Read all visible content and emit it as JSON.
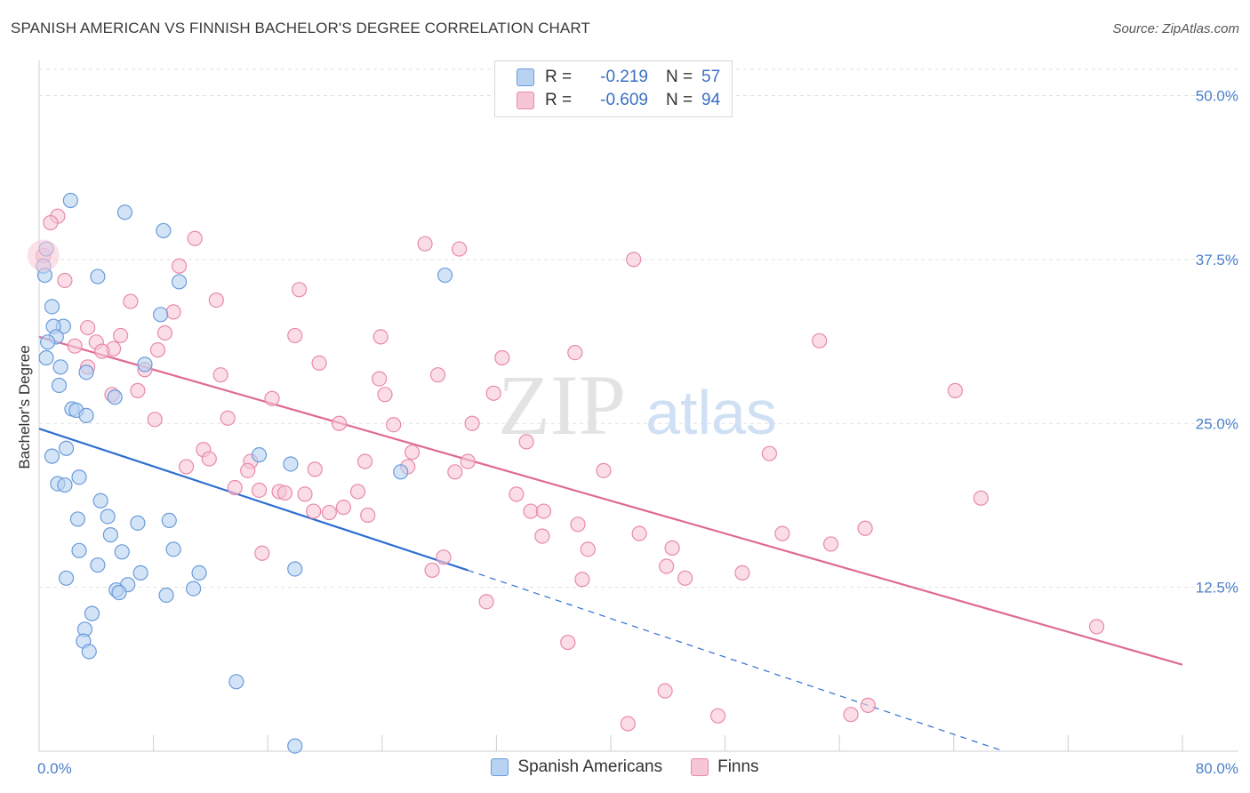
{
  "header": {
    "title": "SPANISH AMERICAN VS FINNISH BACHELOR'S DEGREE CORRELATION CHART",
    "source": "Source: ZipAtlas.com"
  },
  "watermark": {
    "zip": "ZIP",
    "atlas": "atlas"
  },
  "legend": {
    "rows": [
      {
        "r_label": "R =",
        "r_value": "-0.219",
        "n_label": "N =",
        "n_value": "57"
      },
      {
        "r_label": "R =",
        "r_value": "-0.609",
        "n_label": "N =",
        "n_value": "94"
      }
    ],
    "series": [
      "Spanish Americans",
      "Finns"
    ]
  },
  "colors": {
    "blue_fill": "#b8d2f2",
    "blue_stroke": "#6a9bdb",
    "blue_line": "#2f6fd1",
    "pink_fill": "#f7c6d6",
    "pink_stroke": "#e98aa8",
    "pink_line": "#e06a94",
    "tick_label": "#4a7fc9"
  },
  "chart_data": {
    "type": "scatter",
    "title": "SPANISH AMERICAN VS FINNISH BACHELOR'S DEGREE CORRELATION CHART",
    "xlabel": "",
    "ylabel": "Bachelor's Degree",
    "xlim": [
      0,
      80
    ],
    "ylim": [
      0,
      52
    ],
    "x_tick_labels": [
      "0.0%",
      "80.0%"
    ],
    "y_ticks": [
      12.5,
      25.0,
      37.5,
      50.0
    ],
    "y_tick_labels": [
      "12.5%",
      "25.0%",
      "37.5%",
      "50.0%"
    ],
    "series": [
      {
        "name": "Spanish Americans",
        "r": -0.219,
        "n": 57,
        "trend": {
          "x0": 0,
          "y0": 24.6,
          "x1": 30,
          "y1": 13.8,
          "dash_to_x": 67.5,
          "dash_to_y": 0
        },
        "points": [
          [
            2.2,
            42.0
          ],
          [
            6.0,
            41.1
          ],
          [
            8.7,
            39.7
          ],
          [
            0.5,
            38.3
          ],
          [
            0.3,
            37.0
          ],
          [
            0.4,
            36.3
          ],
          [
            4.1,
            36.2
          ],
          [
            9.8,
            35.8
          ],
          [
            28.4,
            36.3
          ],
          [
            0.9,
            33.9
          ],
          [
            8.5,
            33.3
          ],
          [
            1.7,
            32.4
          ],
          [
            1.0,
            32.4
          ],
          [
            1.2,
            31.6
          ],
          [
            0.6,
            31.2
          ],
          [
            0.5,
            30.0
          ],
          [
            7.4,
            29.5
          ],
          [
            1.5,
            29.3
          ],
          [
            3.3,
            28.9
          ],
          [
            1.4,
            27.9
          ],
          [
            5.3,
            27.0
          ],
          [
            2.3,
            26.1
          ],
          [
            2.6,
            26.0
          ],
          [
            3.3,
            25.6
          ],
          [
            1.9,
            23.1
          ],
          [
            0.9,
            22.5
          ],
          [
            15.4,
            22.6
          ],
          [
            17.6,
            21.9
          ],
          [
            25.3,
            21.3
          ],
          [
            2.8,
            20.9
          ],
          [
            1.3,
            20.4
          ],
          [
            1.8,
            20.3
          ],
          [
            4.3,
            19.1
          ],
          [
            2.7,
            17.7
          ],
          [
            4.8,
            17.9
          ],
          [
            6.9,
            17.4
          ],
          [
            9.1,
            17.6
          ],
          [
            5.0,
            16.5
          ],
          [
            2.8,
            15.3
          ],
          [
            5.8,
            15.2
          ],
          [
            9.4,
            15.4
          ],
          [
            4.1,
            14.2
          ],
          [
            7.1,
            13.6
          ],
          [
            11.2,
            13.6
          ],
          [
            1.9,
            13.2
          ],
          [
            6.2,
            12.7
          ],
          [
            5.4,
            12.3
          ],
          [
            5.6,
            12.1
          ],
          [
            10.8,
            12.4
          ],
          [
            8.9,
            11.9
          ],
          [
            3.7,
            10.5
          ],
          [
            3.2,
            9.3
          ],
          [
            3.1,
            8.4
          ],
          [
            3.5,
            7.6
          ],
          [
            13.8,
            5.3
          ],
          [
            17.9,
            0.4
          ],
          [
            17.9,
            13.9
          ]
        ]
      },
      {
        "name": "Finns",
        "r": -0.609,
        "n": 94,
        "trend": {
          "x0": 0,
          "y0": 31.6,
          "x1": 80,
          "y1": 6.6
        },
        "points": [
          [
            1.3,
            40.8
          ],
          [
            0.8,
            40.3
          ],
          [
            10.9,
            39.1
          ],
          [
            27.0,
            38.7
          ],
          [
            29.4,
            38.3
          ],
          [
            0.3,
            37.8
          ],
          [
            41.6,
            37.5
          ],
          [
            9.8,
            37.0
          ],
          [
            1.8,
            35.9
          ],
          [
            18.2,
            35.2
          ],
          [
            6.4,
            34.3
          ],
          [
            12.4,
            34.4
          ],
          [
            9.4,
            33.5
          ],
          [
            3.4,
            32.3
          ],
          [
            8.8,
            31.9
          ],
          [
            5.7,
            31.7
          ],
          [
            17.9,
            31.7
          ],
          [
            23.9,
            31.6
          ],
          [
            54.6,
            31.3
          ],
          [
            4.0,
            31.2
          ],
          [
            2.5,
            30.9
          ],
          [
            5.2,
            30.7
          ],
          [
            4.4,
            30.5
          ],
          [
            8.3,
            30.6
          ],
          [
            37.5,
            30.4
          ],
          [
            32.4,
            30.0
          ],
          [
            19.6,
            29.6
          ],
          [
            7.4,
            29.1
          ],
          [
            3.4,
            29.3
          ],
          [
            12.7,
            28.7
          ],
          [
            27.9,
            28.7
          ],
          [
            5.1,
            27.2
          ],
          [
            6.9,
            27.5
          ],
          [
            64.1,
            27.5
          ],
          [
            24.2,
            27.2
          ],
          [
            31.8,
            27.3
          ],
          [
            16.3,
            26.9
          ],
          [
            8.1,
            25.3
          ],
          [
            13.2,
            25.4
          ],
          [
            21.0,
            25.0
          ],
          [
            24.8,
            24.9
          ],
          [
            30.3,
            25.0
          ],
          [
            34.1,
            23.6
          ],
          [
            11.5,
            23.0
          ],
          [
            26.1,
            22.8
          ],
          [
            51.1,
            22.7
          ],
          [
            11.9,
            22.3
          ],
          [
            14.8,
            22.1
          ],
          [
            22.8,
            22.1
          ],
          [
            30.0,
            22.1
          ],
          [
            10.3,
            21.7
          ],
          [
            25.8,
            21.7
          ],
          [
            19.3,
            21.5
          ],
          [
            39.5,
            21.4
          ],
          [
            14.6,
            21.4
          ],
          [
            29.1,
            21.3
          ],
          [
            13.7,
            20.1
          ],
          [
            15.4,
            19.9
          ],
          [
            16.8,
            19.8
          ],
          [
            17.2,
            19.7
          ],
          [
            18.6,
            19.6
          ],
          [
            22.3,
            19.8
          ],
          [
            33.4,
            19.6
          ],
          [
            65.9,
            19.3
          ],
          [
            21.3,
            18.6
          ],
          [
            20.3,
            18.2
          ],
          [
            19.2,
            18.3
          ],
          [
            34.4,
            18.3
          ],
          [
            35.3,
            18.3
          ],
          [
            23.0,
            18.0
          ],
          [
            37.7,
            17.3
          ],
          [
            57.8,
            17.0
          ],
          [
            42.0,
            16.6
          ],
          [
            52.0,
            16.6
          ],
          [
            35.2,
            16.4
          ],
          [
            55.4,
            15.8
          ],
          [
            44.3,
            15.5
          ],
          [
            38.4,
            15.4
          ],
          [
            15.6,
            15.1
          ],
          [
            28.3,
            14.8
          ],
          [
            43.9,
            14.1
          ],
          [
            27.5,
            13.8
          ],
          [
            49.2,
            13.6
          ],
          [
            45.2,
            13.2
          ],
          [
            38.0,
            13.1
          ],
          [
            31.3,
            11.4
          ],
          [
            74.0,
            9.5
          ],
          [
            37.0,
            8.3
          ],
          [
            43.8,
            4.6
          ],
          [
            58.0,
            3.5
          ],
          [
            47.5,
            2.7
          ],
          [
            56.8,
            2.8
          ],
          [
            41.2,
            2.1
          ],
          [
            23.8,
            28.4
          ]
        ]
      }
    ]
  }
}
